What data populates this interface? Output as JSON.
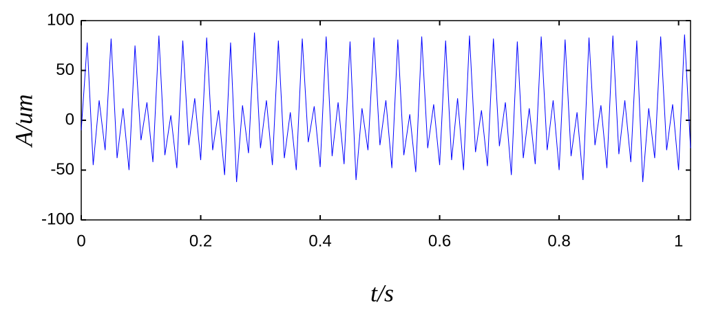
{
  "chart_data": {
    "type": "line",
    "xlabel": "t/s",
    "ylabel": "A/um",
    "x": [
      0,
      0.01,
      0.02,
      0.03,
      0.04,
      0.05,
      0.06,
      0.07,
      0.08,
      0.09,
      0.1,
      0.11,
      0.12,
      0.13,
      0.14,
      0.15,
      0.16,
      0.17,
      0.18,
      0.19,
      0.2,
      0.21,
      0.22,
      0.23,
      0.24,
      0.25,
      0.26,
      0.27,
      0.28,
      0.29,
      0.3,
      0.31,
      0.32,
      0.33,
      0.34,
      0.35,
      0.36,
      0.37,
      0.38,
      0.39,
      0.4,
      0.41,
      0.42,
      0.43,
      0.44,
      0.45,
      0.46,
      0.47,
      0.48,
      0.49,
      0.5,
      0.51,
      0.52,
      0.53,
      0.54,
      0.55,
      0.56,
      0.57,
      0.58,
      0.59,
      0.6,
      0.61,
      0.62,
      0.63,
      0.64,
      0.65,
      0.66,
      0.67,
      0.68,
      0.69,
      0.7,
      0.71,
      0.72,
      0.73,
      0.74,
      0.75,
      0.76,
      0.77,
      0.78,
      0.79,
      0.8,
      0.81,
      0.82,
      0.83,
      0.84,
      0.85,
      0.86,
      0.87,
      0.88,
      0.89,
      0.9,
      0.91,
      0.92,
      0.93,
      0.94,
      0.95,
      0.96,
      0.97,
      0.98,
      0.99,
      1,
      1.01,
      1.02
    ],
    "series": [
      {
        "color": "#0000ff",
        "values": [
          -10,
          78,
          -45,
          20,
          -30,
          82,
          -38,
          12,
          -50,
          75,
          -20,
          18,
          -42,
          85,
          -35,
          5,
          -48,
          80,
          -25,
          22,
          -40,
          83,
          -30,
          10,
          -55,
          78,
          -62,
          15,
          -33,
          88,
          -28,
          20,
          -45,
          80,
          -38,
          8,
          -50,
          82,
          -22,
          14,
          -47,
          84,
          -36,
          18,
          -44,
          79,
          -60,
          12,
          -30,
          83,
          -25,
          20,
          -48,
          81,
          -35,
          6,
          -52,
          84,
          -28,
          16,
          -45,
          80,
          -40,
          22,
          -50,
          85,
          -32,
          10,
          -46,
          82,
          -26,
          18,
          -55,
          79,
          -38,
          12,
          -44,
          84,
          -30,
          20,
          -50,
          81,
          -36,
          8,
          -60,
          83,
          -25,
          15,
          -48,
          85,
          -34,
          20,
          -42,
          80,
          -62,
          12,
          -38,
          84,
          -30,
          16,
          -50,
          86,
          -28
        ]
      }
    ],
    "xlim": [
      0,
      1.02
    ],
    "ylim": [
      -100,
      100
    ],
    "xticks": [
      0,
      0.2,
      0.4,
      0.6,
      0.8,
      1
    ],
    "yticks": [
      -100,
      -50,
      0,
      50,
      100
    ],
    "grid": false
  }
}
